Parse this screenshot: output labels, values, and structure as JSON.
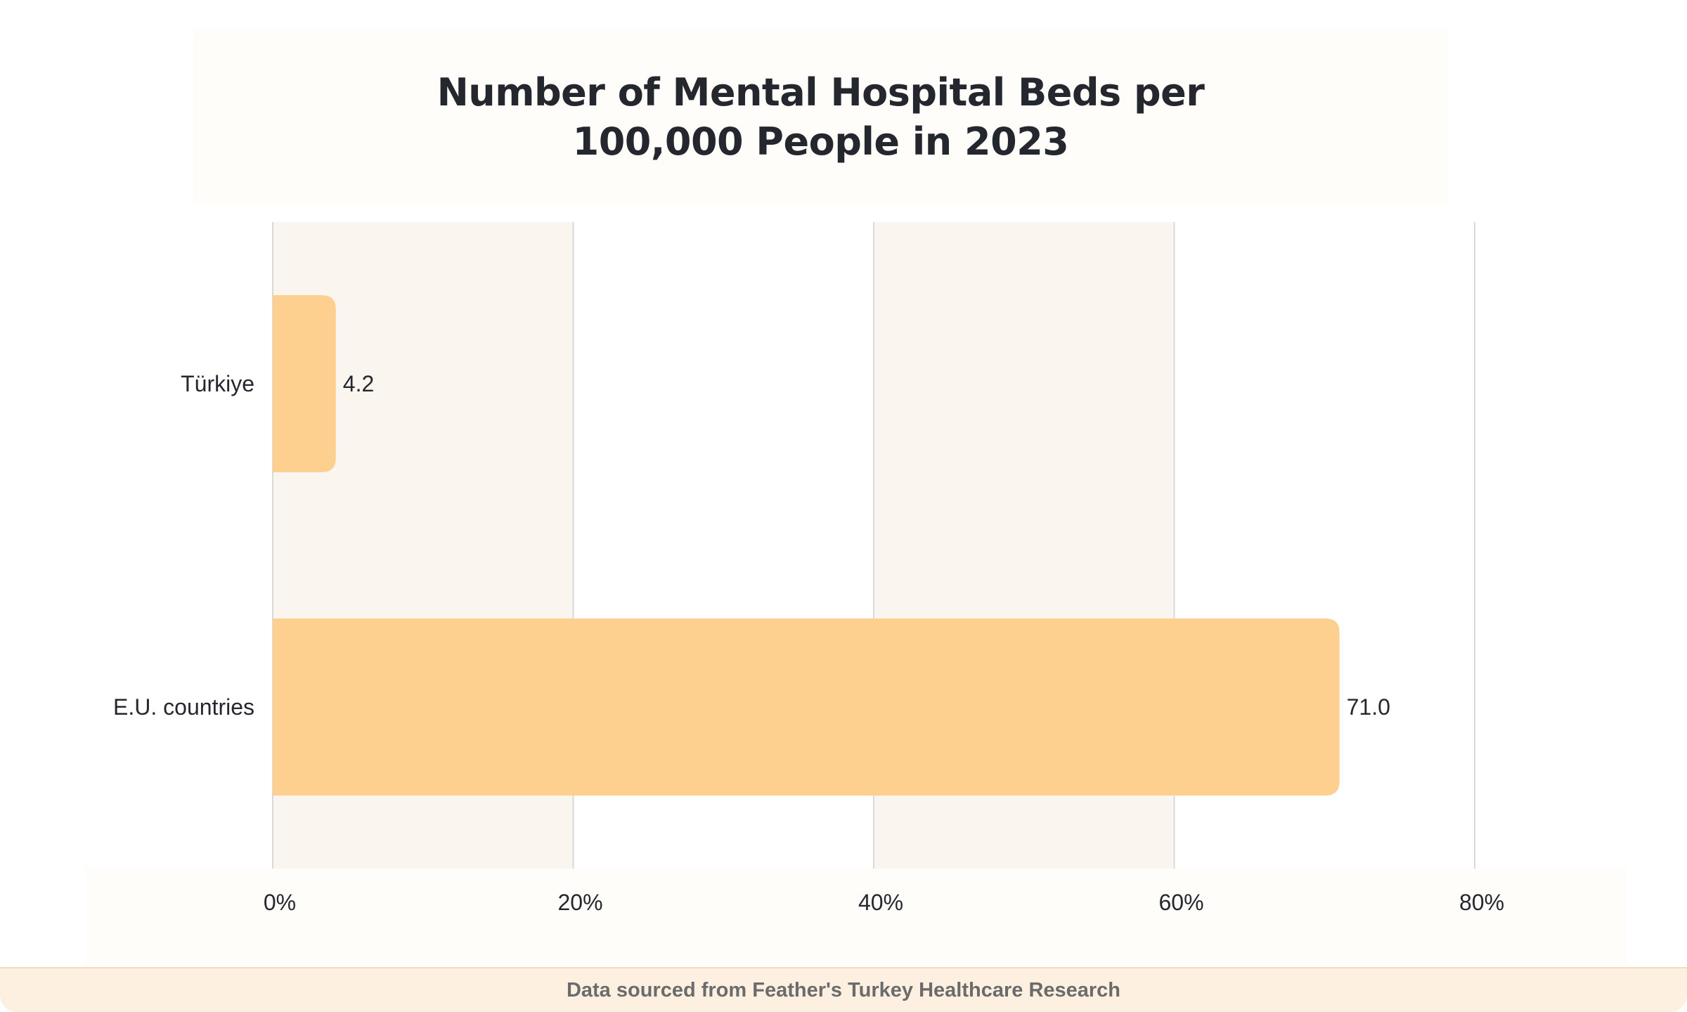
{
  "chart_data": {
    "type": "bar",
    "orientation": "horizontal",
    "title": "Number of Mental Hospital Beds per 100,000 People in 2023",
    "categories": [
      "Türkiye",
      "E.U. countries"
    ],
    "values": [
      4.2,
      71.0
    ],
    "value_labels": [
      "4.2",
      "71.0"
    ],
    "x_ticks": [
      0,
      20,
      40,
      60,
      80
    ],
    "x_tick_labels": [
      "0%",
      "20%",
      "40%",
      "60%",
      "80%"
    ],
    "xlim": [
      0,
      80
    ],
    "grid": true,
    "colors": {
      "bar": "#fed08f",
      "band": "#faf5ee",
      "gridline": "#d9d9d9",
      "text": "#25272e"
    }
  },
  "footer": {
    "source": "Data sourced from Feather's Turkey Healthcare Research"
  }
}
